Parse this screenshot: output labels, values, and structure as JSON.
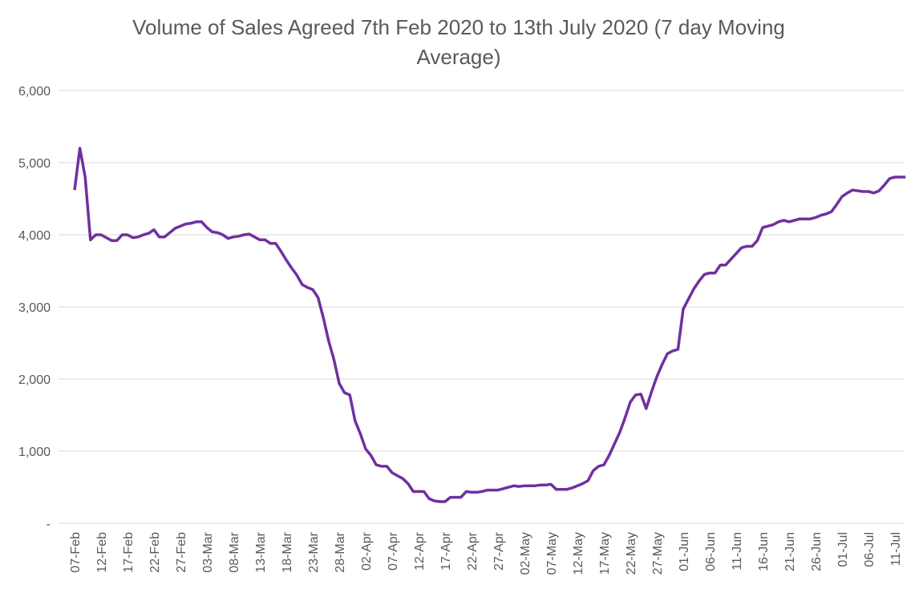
{
  "chart_data": {
    "type": "line",
    "title": "Volume of Sales Agreed 7th Feb 2020 to 13th July 2020 (7 day Moving Average)",
    "categories": [
      "07-Feb",
      null,
      null,
      null,
      null,
      "12-Feb",
      null,
      null,
      null,
      null,
      "17-Feb",
      null,
      null,
      null,
      null,
      "22-Feb",
      null,
      null,
      null,
      null,
      "27-Feb",
      null,
      null,
      null,
      null,
      "03-Mar",
      null,
      null,
      null,
      null,
      "08-Mar",
      null,
      null,
      null,
      null,
      "13-Mar",
      null,
      null,
      null,
      null,
      "18-Mar",
      null,
      null,
      null,
      null,
      "23-Mar",
      null,
      null,
      null,
      null,
      "28-Mar",
      null,
      null,
      null,
      null,
      "02-Apr",
      null,
      null,
      null,
      null,
      "07-Apr",
      null,
      null,
      null,
      null,
      "12-Apr",
      null,
      null,
      null,
      null,
      "17-Apr",
      null,
      null,
      null,
      null,
      "22-Apr",
      null,
      null,
      null,
      null,
      "27-Apr",
      null,
      null,
      null,
      null,
      "02-May",
      null,
      null,
      null,
      null,
      "07-May",
      null,
      null,
      null,
      null,
      "12-May",
      null,
      null,
      null,
      null,
      "17-May",
      null,
      null,
      null,
      null,
      "22-May",
      null,
      null,
      null,
      null,
      "27-May",
      null,
      null,
      null,
      null,
      "01-Jun",
      null,
      null,
      null,
      null,
      "06-Jun",
      null,
      null,
      null,
      null,
      "11-Jun",
      null,
      null,
      null,
      null,
      "16-Jun",
      null,
      null,
      null,
      null,
      "21-Jun",
      null,
      null,
      null,
      null,
      "26-Jun",
      null,
      null,
      null,
      null,
      "01-Jul",
      null,
      null,
      null,
      null,
      "06-Jul",
      null,
      null,
      null,
      null,
      "11-Jul",
      null,
      null
    ],
    "values": [
      4620,
      5200,
      4800,
      3930,
      4000,
      4000,
      3960,
      3920,
      3920,
      4000,
      4000,
      3960,
      3970,
      4000,
      4020,
      4070,
      3970,
      3970,
      4030,
      4090,
      4120,
      4150,
      4160,
      4180,
      4180,
      4100,
      4040,
      4030,
      4000,
      3950,
      3970,
      3980,
      4000,
      4010,
      3970,
      3930,
      3930,
      3880,
      3880,
      3770,
      3650,
      3540,
      3440,
      3310,
      3270,
      3240,
      3130,
      2850,
      2530,
      2270,
      1940,
      1810,
      1780,
      1420,
      1240,
      1030,
      940,
      810,
      790,
      790,
      700,
      660,
      620,
      550,
      440,
      440,
      440,
      340,
      310,
      300,
      300,
      360,
      360,
      360,
      440,
      430,
      430,
      440,
      460,
      460,
      460,
      480,
      500,
      520,
      510,
      520,
      520,
      520,
      530,
      530,
      540,
      470,
      470,
      470,
      490,
      520,
      550,
      590,
      730,
      790,
      810,
      940,
      1100,
      1260,
      1460,
      1680,
      1780,
      1790,
      1590,
      1820,
      2030,
      2200,
      2350,
      2390,
      2410,
      2970,
      3110,
      3250,
      3360,
      3450,
      3470,
      3470,
      3580,
      3580,
      3660,
      3740,
      3820,
      3840,
      3840,
      3920,
      4100,
      4120,
      4140,
      4180,
      4200,
      4180,
      4200,
      4220,
      4220,
      4220,
      4240,
      4270,
      4290,
      4320,
      4420,
      4530,
      4580,
      4620,
      4610,
      4600,
      4600,
      4580,
      4610,
      4690,
      4780,
      4800,
      4800,
      4800
    ],
    "color": "#7030a0",
    "ylim": [
      0,
      6000
    ],
    "yticks": [
      {
        "value": 0,
        "label": "-"
      },
      {
        "value": 1000,
        "label": "1,000"
      },
      {
        "value": 2000,
        "label": "2,000"
      },
      {
        "value": 3000,
        "label": "3,000"
      },
      {
        "value": 4000,
        "label": "4,000"
      },
      {
        "value": 5000,
        "label": "5,000"
      },
      {
        "value": 6000,
        "label": "6,000"
      }
    ],
    "grid": true
  }
}
